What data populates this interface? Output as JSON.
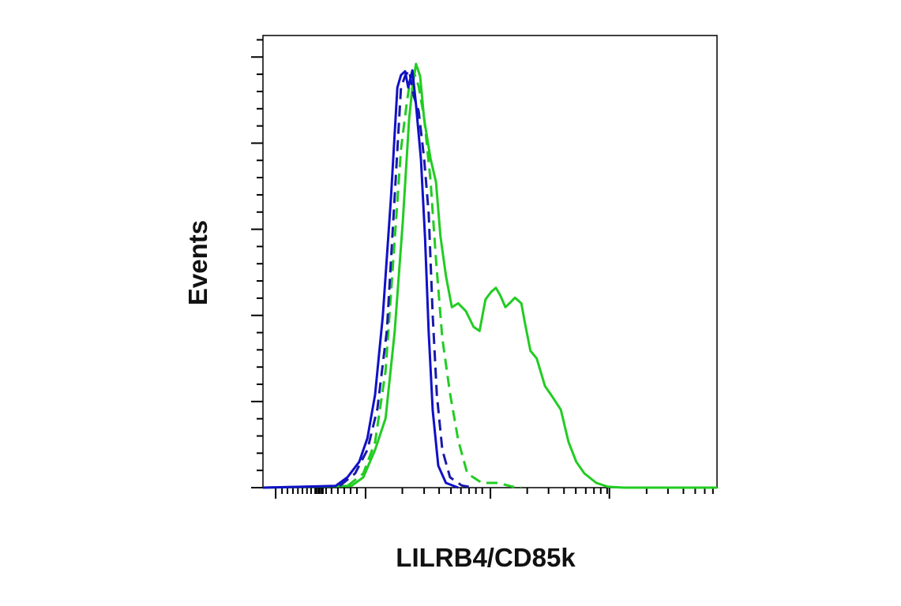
{
  "chart_data": {
    "type": "line",
    "xlabel": "LILRB4/CD85k",
    "ylabel": "Events",
    "xlim": [
      0,
      100
    ],
    "ylim": [
      0,
      105
    ],
    "xticks": [
      2.8,
      22.6,
      50.1,
      76.3
    ],
    "xminorticks": [
      4.2,
      5.4,
      6.6,
      7.7,
      8.7,
      9.7,
      10.6,
      11.5,
      11.8,
      12.2,
      12.5,
      12.9,
      13.2,
      13.9,
      15.1,
      16.5,
      17.9,
      19.3,
      20.7,
      30.7,
      35.5,
      38.8,
      41.4,
      43.6,
      45.4,
      46.9,
      48.3,
      58.2,
      62.9,
      66.3,
      68.9,
      71.1,
      72.9,
      74.4,
      75.8,
      84.5,
      89.2,
      92.6,
      95.2,
      97.3,
      99.1
    ],
    "yticks": [
      0,
      20,
      40,
      60,
      80,
      100
    ],
    "yminorticks": [
      4,
      8,
      12,
      16,
      24,
      28,
      32,
      36,
      44,
      48,
      52,
      56,
      64,
      68,
      72,
      76,
      84,
      88,
      92,
      96,
      104
    ],
    "series": [
      {
        "color": "#22cc22",
        "dash": false,
        "x": [
          0,
          19.5,
          22.1,
          24.7,
          27.0,
          29.0,
          30.8,
          32.2,
          32.9,
          33.7,
          34.6,
          35.5,
          36.9,
          38.1,
          39.1,
          40.3,
          41.6,
          43.0,
          44.7,
          46.4,
          47.7,
          49.0,
          50.3,
          51.3,
          52.3,
          53.4,
          54.3,
          55.5,
          56.9,
          57.7,
          58.9,
          60.3,
          62.1,
          63.8,
          65.6,
          67.3,
          69.0,
          70.8,
          73.4,
          76.0,
          79.5,
          100
        ],
        "values": [
          0,
          0.4,
          2.4,
          8.8,
          16.1,
          36.2,
          61.8,
          85.6,
          92.9,
          98.4,
          95.6,
          85.6,
          76.4,
          71.0,
          58.3,
          49.2,
          41.9,
          42.8,
          41.0,
          37.3,
          36.4,
          43.7,
          45.5,
          46.4,
          44.6,
          41.9,
          42.8,
          44.1,
          42.8,
          38.2,
          31.8,
          30.0,
          23.6,
          21.0,
          18.1,
          10.6,
          6.0,
          3.3,
          1.1,
          0.2,
          0,
          0
        ]
      },
      {
        "color": "#22cc22",
        "dash": true,
        "x": [
          18.6,
          22.1,
          24.7,
          27.0,
          28.7,
          30.4,
          31.7,
          32.5,
          33.4,
          34.3,
          35.5,
          36.9,
          38.1,
          39.5,
          41.2,
          43.0,
          45.0,
          48.2,
          51.7,
          55.1,
          56.9
        ],
        "values": [
          0.4,
          3.3,
          10.6,
          27.1,
          52.7,
          78.6,
          89.6,
          95.1,
          96.0,
          93.2,
          85.9,
          71.3,
          53.0,
          34.7,
          21.9,
          11.0,
          3.3,
          1.1,
          1.1,
          0.2,
          0
        ]
      },
      {
        "color": "#1a1aa8",
        "dash": true,
        "x": [
          16.9,
          20.3,
          23.0,
          25.2,
          27.3,
          29.0,
          30.4,
          31.3,
          32.2,
          33.2,
          34.3,
          35.5,
          36.5,
          37.4,
          38.3,
          39.5,
          41.2,
          43.8,
          46.4
        ],
        "values": [
          0.4,
          3.3,
          8.8,
          18.3,
          36.6,
          67.6,
          92.9,
          95.6,
          96.9,
          91.0,
          87.4,
          76.4,
          63.6,
          39.9,
          21.6,
          8.8,
          2.4,
          0.5,
          0
        ]
      },
      {
        "color": "#1010c8",
        "dash": false,
        "x": [
          0,
          16.0,
          18.6,
          21.2,
          23.0,
          24.7,
          26.4,
          28.2,
          29.6,
          30.4,
          31.3,
          32.0,
          32.9,
          33.7,
          34.8,
          35.7,
          36.5,
          37.4,
          38.6,
          40.3,
          43.0
        ],
        "values": [
          0,
          0.4,
          2.4,
          6.0,
          11.5,
          21.6,
          39.9,
          67.3,
          92.9,
          95.8,
          96.7,
          92.9,
          96.9,
          89.0,
          76.2,
          57.9,
          36.0,
          17.9,
          5.1,
          1.1,
          0
        ]
      }
    ]
  }
}
